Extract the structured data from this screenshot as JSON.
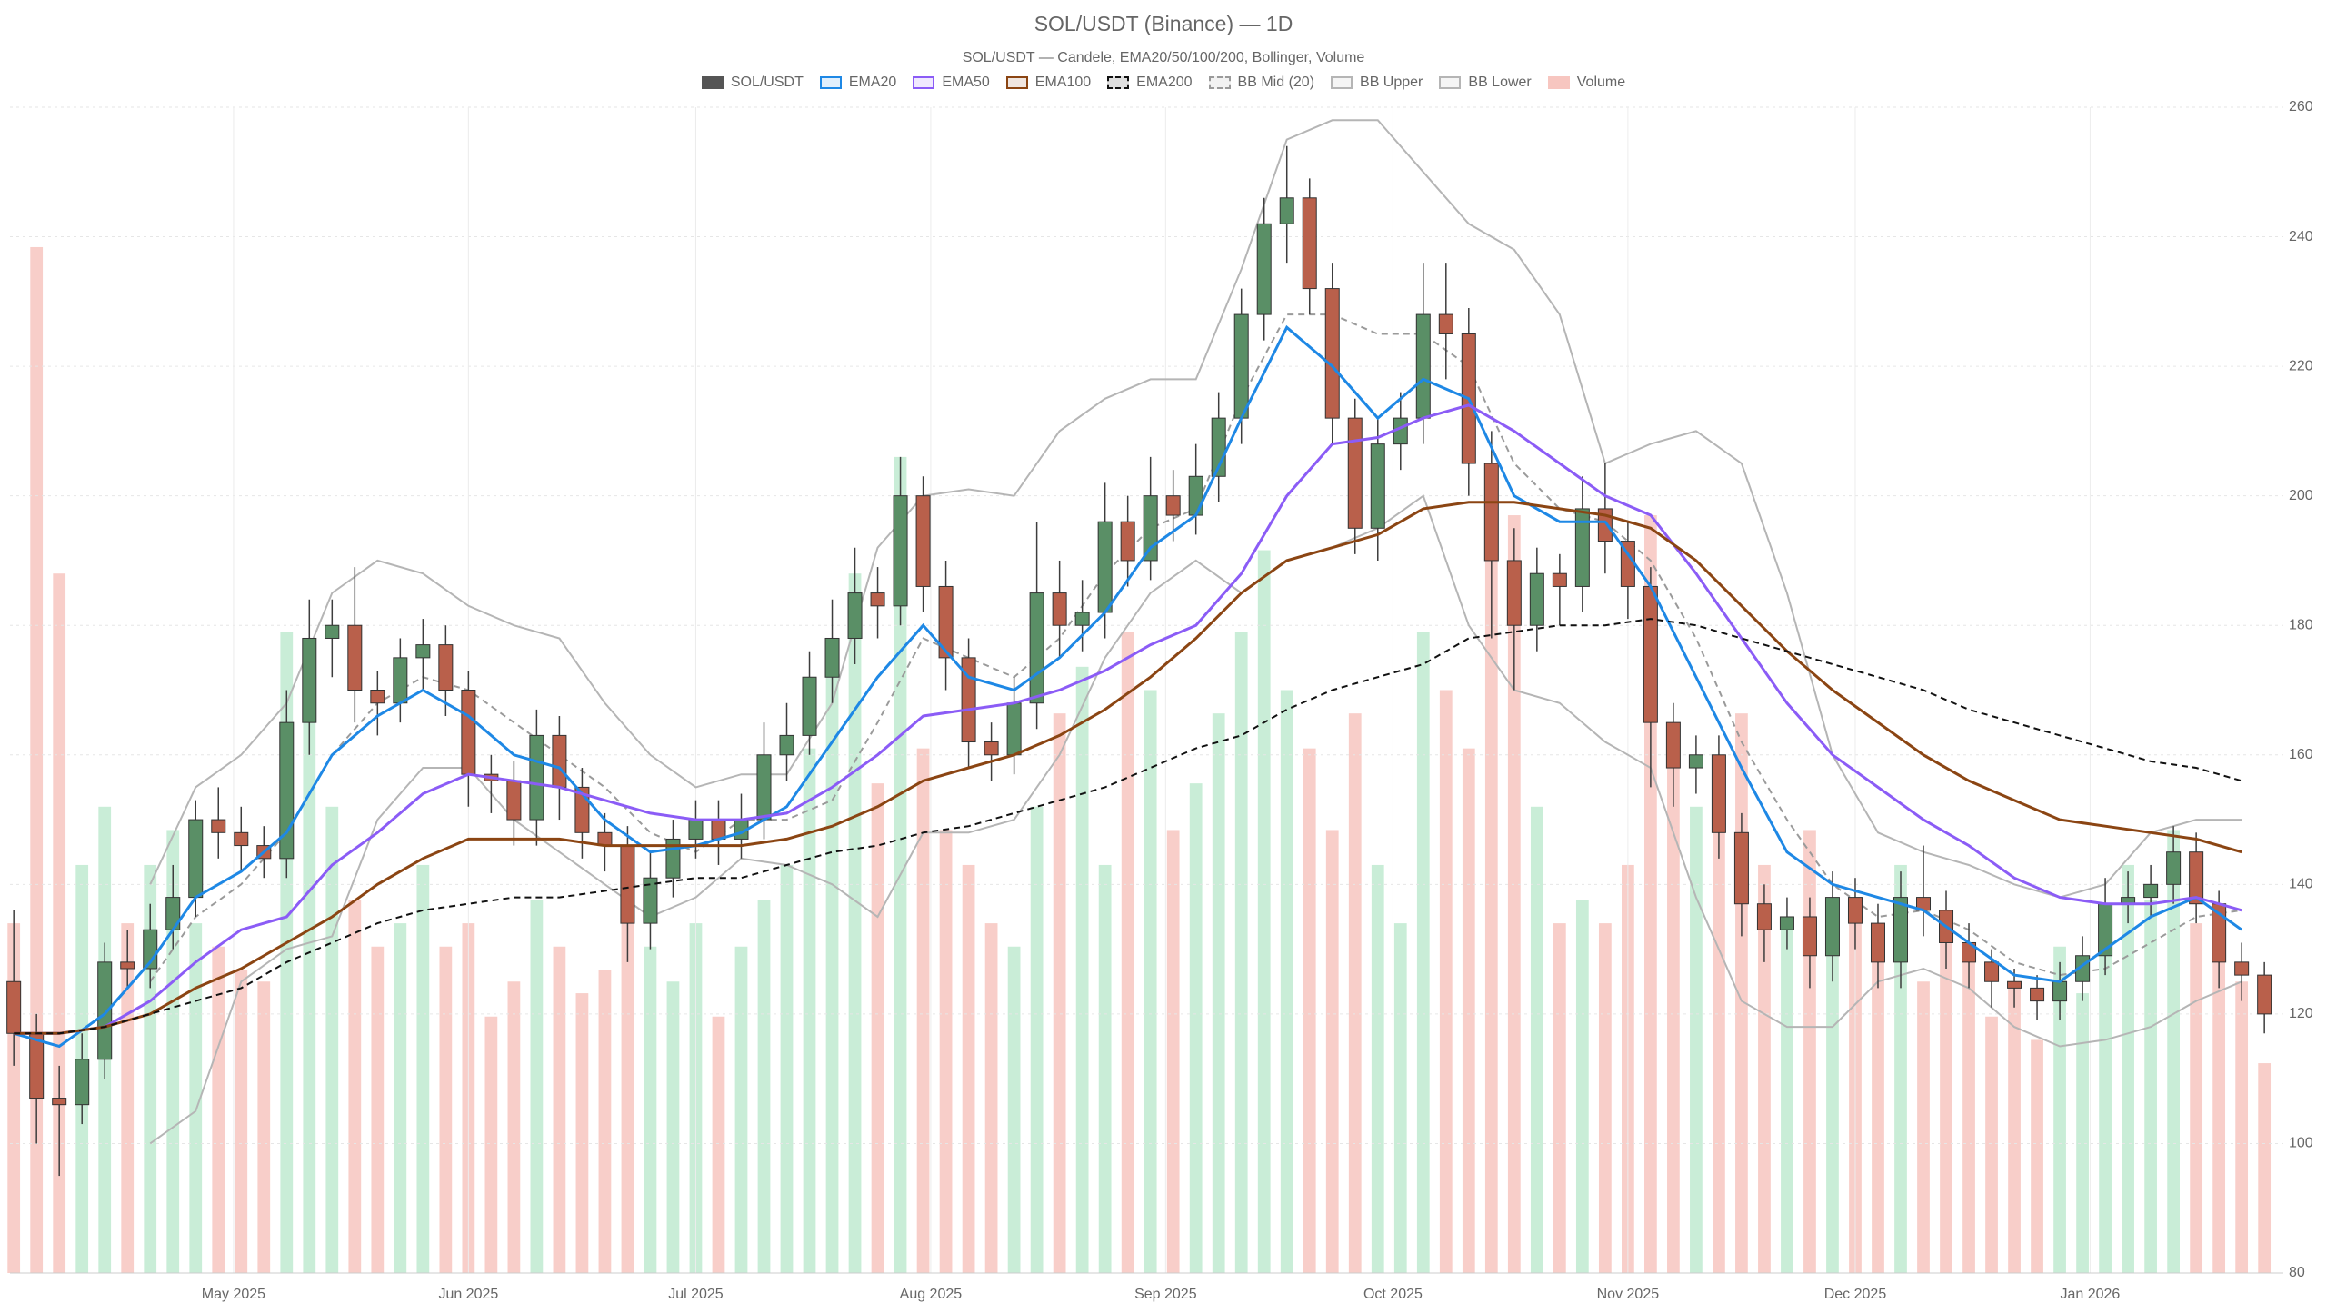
{
  "chart_data": {
    "type": "candlestick",
    "title": "SOL/USDT (Binance) — 1D",
    "subtitle": "SOL/USDT — Candele, EMA20/50/100/200, Bollinger, Volume",
    "grid": true,
    "xlim": [
      -0.5,
      299.5
    ],
    "xticks": [
      {
        "value": 29,
        "label": "May 2025"
      },
      {
        "value": 60,
        "label": "Jun 2025"
      },
      {
        "value": 90,
        "label": "Jul 2025"
      },
      {
        "value": 121,
        "label": "Aug 2025"
      },
      {
        "value": 152,
        "label": "Sep 2025"
      },
      {
        "value": 182,
        "label": "Oct 2025"
      },
      {
        "value": 213,
        "label": "Nov 2025"
      },
      {
        "value": 243,
        "label": "Dec 2025"
      },
      {
        "value": 274,
        "label": "Jan 2026"
      }
    ],
    "ylim": [
      80,
      260
    ],
    "yticks": [
      80,
      100,
      120,
      140,
      160,
      180,
      200,
      220,
      240,
      260
    ],
    "y2lim": [
      0,
      100
    ],
    "x": [
      0,
      3,
      6,
      9,
      12,
      15,
      18,
      21,
      24,
      27,
      30,
      33,
      36,
      39,
      42,
      45,
      48,
      51,
      54,
      57,
      60,
      63,
      66,
      69,
      72,
      75,
      78,
      81,
      84,
      87,
      90,
      93,
      96,
      99,
      102,
      105,
      108,
      111,
      114,
      117,
      120,
      123,
      126,
      129,
      132,
      135,
      138,
      141,
      144,
      147,
      150,
      153,
      156,
      159,
      162,
      165,
      168,
      171,
      174,
      177,
      180,
      183,
      186,
      189,
      192,
      195,
      198,
      201,
      204,
      207,
      210,
      213,
      216,
      219,
      222,
      225,
      228,
      231,
      234,
      237,
      240,
      243,
      246,
      249,
      252,
      255,
      258,
      261,
      264,
      267,
      270,
      273,
      276,
      279,
      282,
      285,
      288,
      291,
      294,
      297
    ],
    "candles": {
      "name": "SOL/USDT",
      "color": "#555555",
      "up_color": "#5a8f66",
      "down_color": "#b9604b",
      "open": [
        125,
        117,
        107,
        106,
        113,
        128,
        127,
        133,
        138,
        150,
        148,
        146,
        144,
        165,
        178,
        180,
        170,
        168,
        175,
        177,
        170,
        157,
        156,
        150,
        163,
        155,
        148,
        146,
        134,
        141,
        147,
        150,
        147,
        150,
        160,
        163,
        172,
        178,
        185,
        183,
        200,
        186,
        175,
        162,
        160,
        168,
        185,
        180,
        182,
        196,
        190,
        200,
        197,
        203,
        212,
        228,
        242,
        246,
        232,
        212,
        195,
        208,
        212,
        228,
        225,
        205,
        190,
        180,
        188,
        186,
        198,
        193,
        186,
        165,
        158,
        160,
        148,
        137,
        133,
        135,
        129,
        138,
        134,
        128,
        138,
        136,
        131,
        128,
        125,
        124,
        122,
        125,
        129,
        137,
        138,
        140,
        145,
        137,
        128,
        126
      ],
      "high": [
        136,
        120,
        112,
        117,
        131,
        133,
        137,
        143,
        153,
        155,
        152,
        149,
        170,
        184,
        184,
        189,
        173,
        178,
        181,
        180,
        173,
        160,
        159,
        167,
        166,
        158,
        151,
        149,
        145,
        150,
        153,
        153,
        154,
        165,
        168,
        176,
        184,
        192,
        189,
        206,
        203,
        190,
        178,
        165,
        172,
        196,
        190,
        187,
        202,
        200,
        206,
        204,
        208,
        216,
        232,
        246,
        254,
        249,
        236,
        215,
        212,
        216,
        236,
        236,
        229,
        210,
        195,
        192,
        191,
        203,
        205,
        196,
        189,
        168,
        163,
        163,
        151,
        140,
        138,
        138,
        142,
        141,
        137,
        142,
        146,
        139,
        134,
        130,
        127,
        126,
        128,
        132,
        141,
        142,
        143,
        149,
        148,
        139,
        131,
        128
      ],
      "low": [
        112,
        100,
        95,
        103,
        110,
        124,
        124,
        130,
        135,
        144,
        142,
        141,
        141,
        160,
        172,
        165,
        163,
        165,
        170,
        166,
        152,
        151,
        146,
        146,
        150,
        144,
        142,
        128,
        130,
        138,
        144,
        143,
        144,
        147,
        156,
        160,
        168,
        174,
        178,
        180,
        182,
        170,
        158,
        156,
        157,
        164,
        175,
        176,
        178,
        186,
        187,
        193,
        194,
        199,
        208,
        224,
        236,
        228,
        208,
        191,
        190,
        204,
        208,
        218,
        200,
        178,
        170,
        176,
        180,
        182,
        188,
        181,
        155,
        152,
        154,
        144,
        132,
        128,
        130,
        124,
        125,
        130,
        124,
        124,
        132,
        127,
        124,
        121,
        121,
        119,
        119,
        122,
        126,
        134,
        135,
        137,
        134,
        124,
        122,
        117
      ],
      "close": [
        117,
        107,
        106,
        113,
        128,
        127,
        133,
        138,
        150,
        148,
        146,
        144,
        165,
        178,
        180,
        170,
        168,
        175,
        177,
        170,
        157,
        156,
        150,
        163,
        155,
        148,
        146,
        134,
        141,
        147,
        150,
        147,
        150,
        160,
        163,
        172,
        178,
        185,
        183,
        200,
        186,
        175,
        162,
        160,
        168,
        185,
        180,
        182,
        196,
        190,
        200,
        197,
        203,
        212,
        228,
        242,
        246,
        232,
        212,
        195,
        208,
        212,
        228,
        225,
        205,
        190,
        180,
        188,
        186,
        198,
        193,
        186,
        165,
        158,
        160,
        148,
        137,
        133,
        135,
        129,
        138,
        134,
        128,
        138,
        136,
        131,
        128,
        125,
        124,
        122,
        125,
        129,
        137,
        138,
        140,
        145,
        137,
        128,
        126,
        120
      ]
    },
    "volume": {
      "name": "Volume",
      "axis": "y2",
      "color": "#f7c6c0",
      "up_color": "#bfead0",
      "down_color": "#f7c6c0",
      "values": [
        30,
        88,
        60,
        35,
        40,
        30,
        35,
        38,
        30,
        28,
        26,
        25,
        55,
        50,
        40,
        32,
        28,
        30,
        35,
        28,
        30,
        22,
        25,
        32,
        28,
        24,
        26,
        30,
        28,
        25,
        30,
        22,
        28,
        32,
        35,
        45,
        52,
        60,
        42,
        70,
        45,
        38,
        35,
        30,
        28,
        40,
        48,
        52,
        35,
        55,
        50,
        38,
        42,
        48,
        55,
        62,
        50,
        45,
        38,
        48,
        35,
        30,
        55,
        50,
        45,
        62,
        65,
        40,
        30,
        32,
        30,
        35,
        65,
        45,
        40,
        42,
        48,
        35,
        30,
        38,
        32,
        30,
        28,
        35,
        25,
        30,
        28,
        22,
        25,
        20,
        28,
        24,
        30,
        35,
        32,
        38,
        30,
        28,
        25,
        18
      ]
    },
    "line_x": [
      0,
      6,
      12,
      18,
      24,
      30,
      36,
      42,
      48,
      54,
      60,
      66,
      72,
      78,
      84,
      90,
      96,
      102,
      108,
      114,
      120,
      126,
      132,
      138,
      144,
      150,
      156,
      162,
      168,
      174,
      180,
      186,
      192,
      198,
      204,
      210,
      216,
      222,
      228,
      234,
      240,
      246,
      252,
      258,
      264,
      270,
      276,
      282,
      288,
      294
    ],
    "lines": [
      {
        "name": "EMA20",
        "color": "#1e88e5",
        "dash": false,
        "values": [
          117,
          115,
          120,
          128,
          138,
          142,
          148,
          160,
          166,
          170,
          166,
          160,
          158,
          150,
          145,
          146,
          148,
          152,
          162,
          172,
          180,
          172,
          170,
          175,
          182,
          192,
          197,
          212,
          226,
          220,
          212,
          218,
          215,
          200,
          196,
          196,
          186,
          172,
          158,
          145,
          140,
          138,
          136,
          131,
          126,
          125,
          130,
          135,
          138,
          133
        ]
      },
      {
        "name": "EMA50",
        "color": "#8b5cf6",
        "dash": false,
        "values": [
          117,
          117,
          118,
          122,
          128,
          133,
          135,
          143,
          148,
          154,
          157,
          156,
          155,
          153,
          151,
          150,
          150,
          151,
          155,
          160,
          166,
          167,
          168,
          170,
          173,
          177,
          180,
          188,
          200,
          208,
          209,
          212,
          214,
          210,
          205,
          200,
          197,
          188,
          178,
          168,
          160,
          155,
          150,
          146,
          141,
          138,
          137,
          137,
          138,
          136
        ]
      },
      {
        "name": "EMA100",
        "color": "#8b4513",
        "dash": false,
        "values": [
          117,
          117,
          118,
          120,
          124,
          127,
          131,
          135,
          140,
          144,
          147,
          147,
          147,
          146,
          146,
          146,
          146,
          147,
          149,
          152,
          156,
          158,
          160,
          163,
          167,
          172,
          178,
          185,
          190,
          192,
          194,
          198,
          199,
          199,
          198,
          197,
          195,
          190,
          183,
          176,
          170,
          165,
          160,
          156,
          153,
          150,
          149,
          148,
          147,
          145
        ]
      },
      {
        "name": "EMA200",
        "color": "#111111",
        "dash": true,
        "values": [
          117,
          117,
          118,
          120,
          122,
          124,
          128,
          131,
          134,
          136,
          137,
          138,
          138,
          139,
          140,
          141,
          141,
          143,
          145,
          146,
          148,
          149,
          151,
          153,
          155,
          158,
          161,
          163,
          167,
          170,
          172,
          174,
          178,
          179,
          180,
          180,
          181,
          180,
          178,
          176,
          174,
          172,
          170,
          167,
          165,
          163,
          161,
          159,
          158,
          156
        ]
      },
      {
        "name": "BB Mid (20)",
        "color": "#9a9a9a",
        "dash": true,
        "values": [
          null,
          null,
          null,
          125,
          135,
          140,
          148,
          160,
          168,
          172,
          170,
          165,
          160,
          155,
          148,
          145,
          150,
          150,
          153,
          165,
          178,
          175,
          172,
          178,
          188,
          195,
          198,
          215,
          228,
          228,
          225,
          225,
          220,
          205,
          198,
          196,
          190,
          178,
          162,
          150,
          140,
          135,
          136,
          133,
          128,
          126,
          127,
          131,
          135,
          136
        ]
      },
      {
        "name": "BB Upper",
        "color": "#b5b5b5",
        "dash": false,
        "values": [
          null,
          null,
          null,
          140,
          155,
          160,
          168,
          185,
          190,
          188,
          183,
          180,
          178,
          168,
          160,
          155,
          157,
          157,
          168,
          192,
          200,
          201,
          200,
          210,
          215,
          218,
          218,
          235,
          255,
          258,
          258,
          250,
          242,
          238,
          228,
          205,
          208,
          210,
          205,
          185,
          160,
          148,
          145,
          143,
          140,
          138,
          140,
          148,
          150,
          150
        ]
      },
      {
        "name": "BB Lower",
        "color": "#b5b5b5",
        "dash": false,
        "values": [
          null,
          null,
          null,
          100,
          105,
          125,
          130,
          132,
          150,
          158,
          158,
          150,
          145,
          140,
          135,
          138,
          144,
          143,
          140,
          135,
          148,
          148,
          150,
          160,
          175,
          185,
          190,
          185,
          190,
          192,
          195,
          200,
          180,
          170,
          168,
          162,
          158,
          138,
          122,
          118,
          118,
          125,
          127,
          124,
          118,
          115,
          116,
          118,
          122,
          125
        ]
      }
    ]
  }
}
